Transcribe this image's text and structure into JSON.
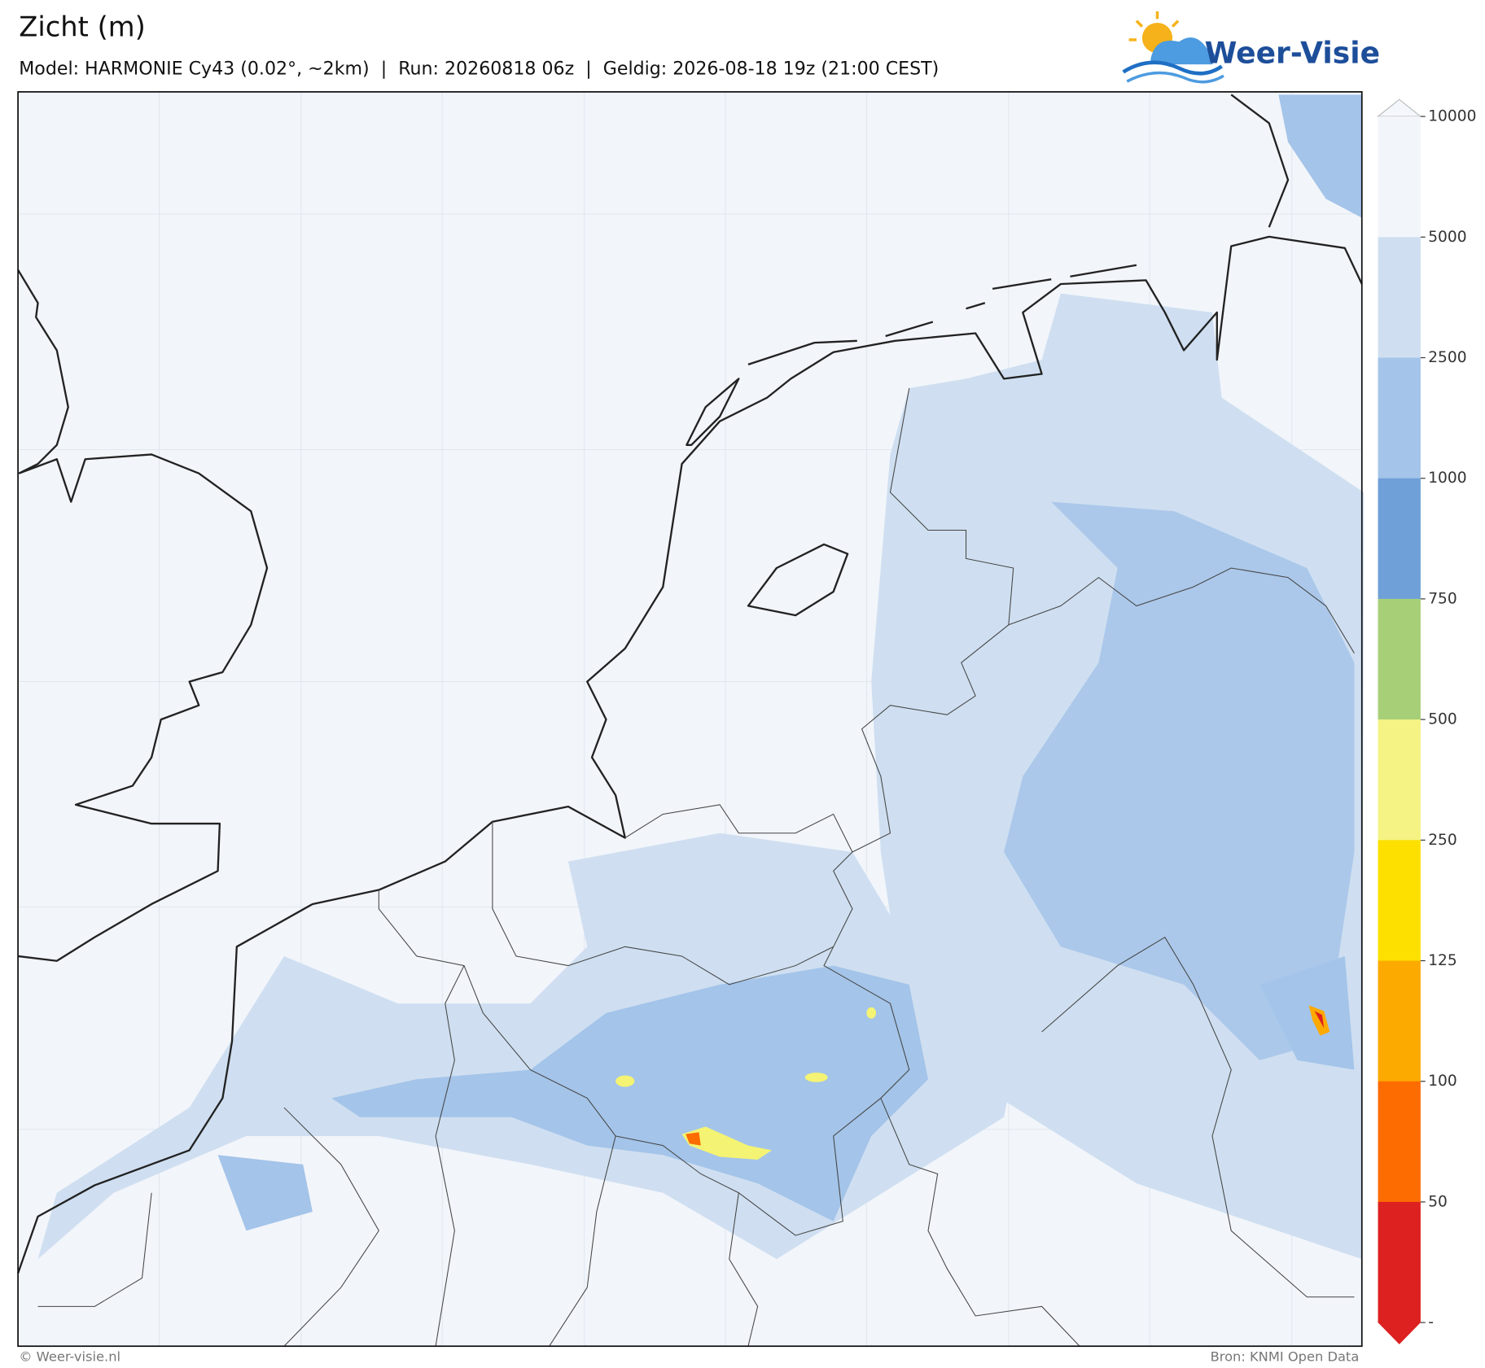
{
  "header": {
    "title": "Zicht (m)",
    "subtitle": "Model: HARMONIE Cy43 (0.02°, ~2km)  |  Run: 20260818 06z  |  Geldig: 2026-08-18 19z (21:00 CEST)",
    "logo": "Weer-Visie"
  },
  "colorbar": {
    "levels": [
      10000,
      5000,
      2500,
      1000,
      750,
      500,
      250,
      125,
      100,
      50
    ],
    "bottom_label": "-",
    "colors": [
      "#f2f6fb",
      "#cfdff1",
      "#a4c4e9",
      "#6fa0d8",
      "#a7cf78",
      "#f4f384",
      "#fde000",
      "#fdaa00",
      "#fd6c00",
      "#dd2020"
    ],
    "over_color": "#f4f7fc",
    "under_color": "#dd2020"
  },
  "footer": {
    "left": "© Weer-visie.nl",
    "right": "Bron: KNMI Open Data"
  }
}
